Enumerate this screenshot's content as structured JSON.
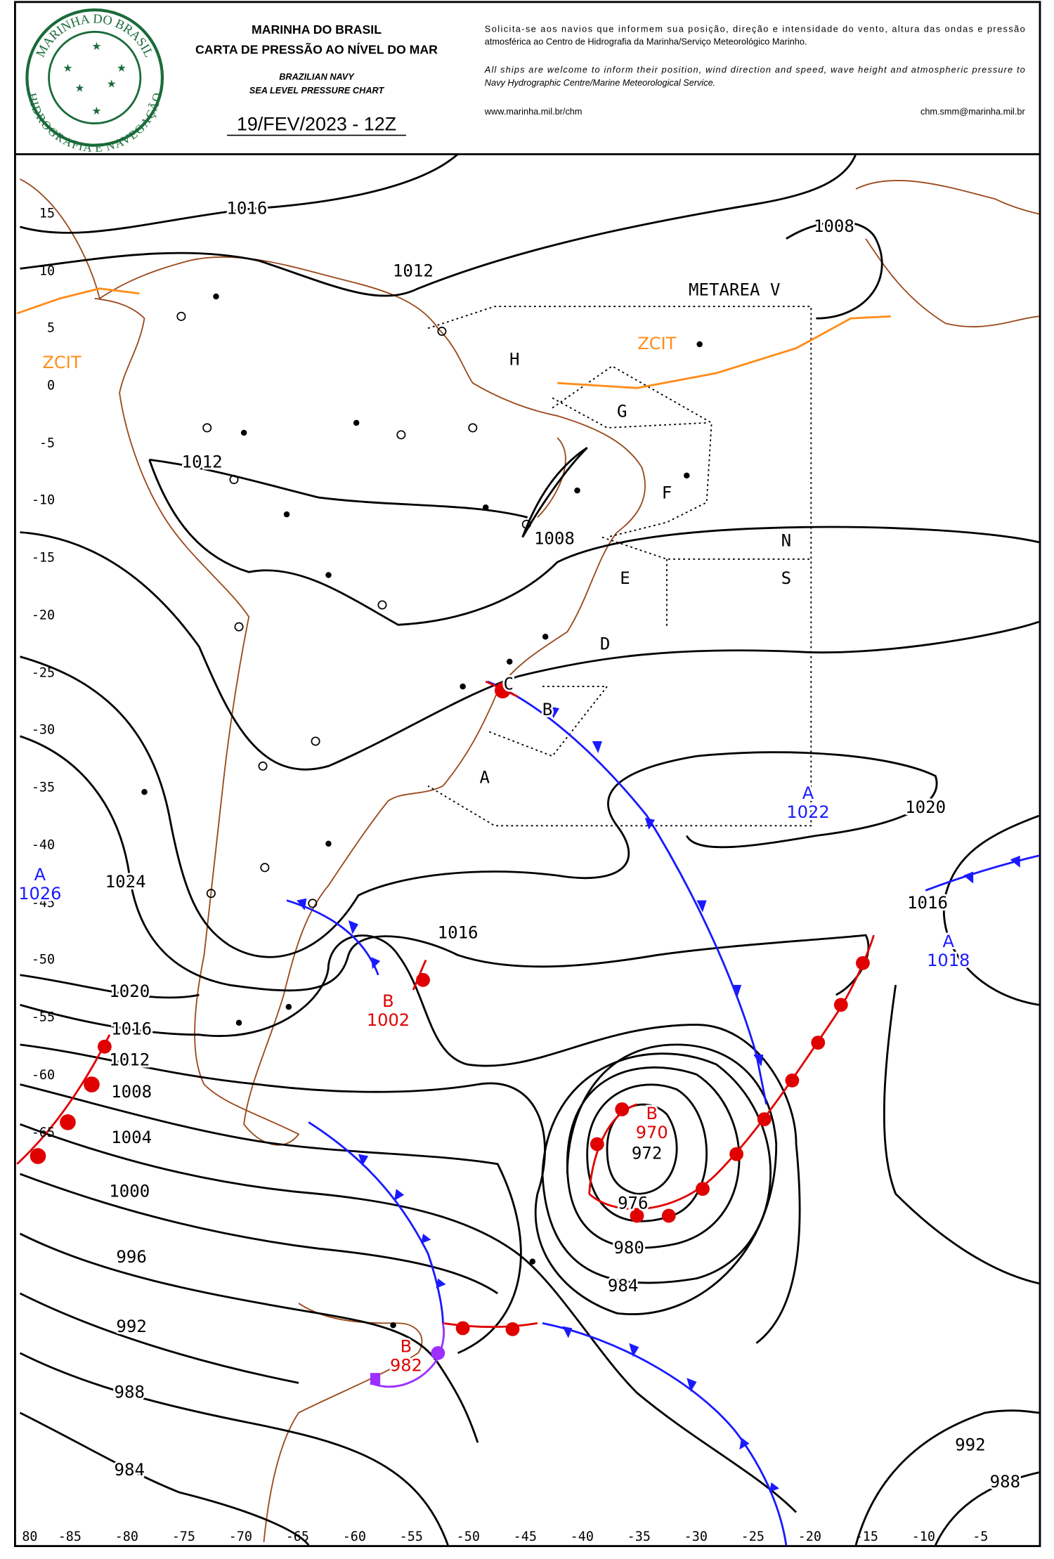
{
  "header": {
    "logo": {
      "top": "MARINHA DO BRASIL",
      "bottom": "HIDROGRAFIA E NAVEGAÇÃO"
    },
    "title": [
      "MARINHA DO BRASIL",
      "CARTA DE PRESSÃO AO NÍVEL DO MAR"
    ],
    "subtitle": [
      "BRAZILIAN NAVY",
      "SEA LEVEL PRESSURE CHART"
    ],
    "date": "19/FEV/2023 - 12Z",
    "notice_pt": [
      "Solicita-se aos navios que informem sua posição, direção e intensidade do vento, altura das ondas e pressão",
      "atmosférica ao Centro de Hidrografia da Marinha/Serviço Meteorológico Marinho."
    ],
    "notice_en": [
      "All ships are welcome to inform their position, wind direction and speed, wave height and atmospheric pressure to",
      "Navy Hydrographic Centre/Marine Meteorological Service."
    ],
    "url": "www.marinha.mil.br/chm",
    "email": "chm.smm@marinha.mil.br"
  },
  "map": {
    "latitudes": [
      "15",
      "10",
      "5",
      "0",
      "-5",
      "-10",
      "-15",
      "-20",
      "-25",
      "-30",
      "-35",
      "-40",
      "-45",
      "-50",
      "-55",
      "-60",
      "-65",
      "80"
    ],
    "longitudes": [
      "-85",
      "-80",
      "-75",
      "-70",
      "-65",
      "-60",
      "-55",
      "-50",
      "-45",
      "-40",
      "-35",
      "-30",
      "-25",
      "-20",
      "-15",
      "-10",
      "-5"
    ],
    "isobars": [
      "1016",
      "1012",
      "1008",
      "1012",
      "1008",
      "1024",
      "1020",
      "1016",
      "1016",
      "1020",
      "1016",
      "1012",
      "1008",
      "1004",
      "1000",
      "996",
      "992",
      "988",
      "984",
      "972",
      "976",
      "980",
      "984",
      "992",
      "988"
    ],
    "systems": [
      {
        "letter": "A",
        "value": "1026",
        "color": "#1a1aff"
      },
      {
        "letter": "A",
        "value": "1022",
        "color": "#1a1aff"
      },
      {
        "letter": "A",
        "value": "1018",
        "color": "#1a1aff"
      },
      {
        "letter": "B",
        "value": "1002",
        "color": "#e00000"
      },
      {
        "letter": "B",
        "value": "970",
        "color": "#e00000"
      },
      {
        "letter": "B",
        "value": "982",
        "color": "#e00000"
      }
    ],
    "areas": [
      "METAREA V",
      "H",
      "G",
      "F",
      "N",
      "S",
      "E",
      "D",
      "C",
      "B",
      "A"
    ],
    "itcz": [
      "ZCIT",
      "ZCIT"
    ]
  }
}
